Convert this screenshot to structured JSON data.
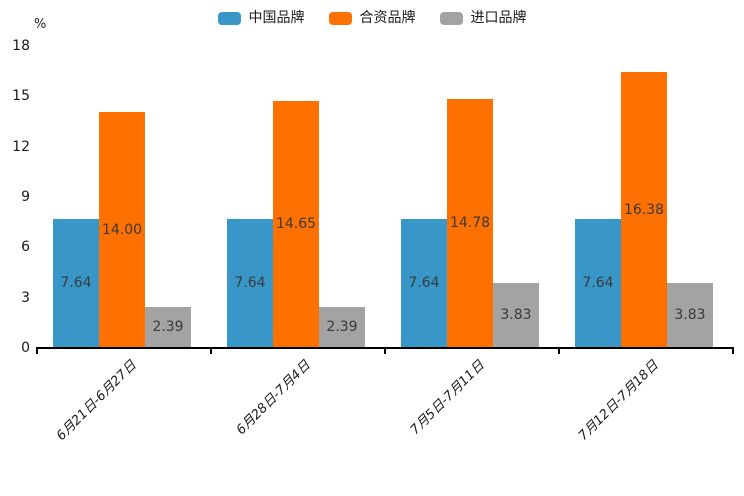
{
  "chart_data": {
    "type": "bar",
    "title": "",
    "unit_label": "%",
    "categories": [
      "6月21日-6月27日",
      "6月28日-7月4日",
      "7月5日-7月11日",
      "7月12日-7月18日"
    ],
    "series": [
      {
        "name": "中国品牌",
        "color": "#3897C8",
        "values": [
          7.64,
          7.64,
          7.64,
          7.64
        ],
        "labels": [
          "7.64",
          "7.64",
          "7.64",
          "7.64"
        ]
      },
      {
        "name": "合资品牌",
        "color": "#FE7000",
        "values": [
          14.0,
          14.65,
          14.78,
          16.38
        ],
        "labels": [
          "14.00",
          "14.65",
          "14.78",
          "16.38"
        ]
      },
      {
        "name": "进口品牌",
        "color": "#A3A3A3",
        "values": [
          2.39,
          2.39,
          3.83,
          3.83
        ],
        "labels": [
          "2.39",
          "2.39",
          "3.83",
          "3.83"
        ]
      }
    ],
    "yticks": [
      0,
      3,
      6,
      9,
      12,
      15,
      18
    ],
    "ylim": [
      0,
      18
    ],
    "grid": false,
    "legend_position": "top-center",
    "axis_color": "#000000",
    "value_label_color": "#3a3a3a"
  }
}
